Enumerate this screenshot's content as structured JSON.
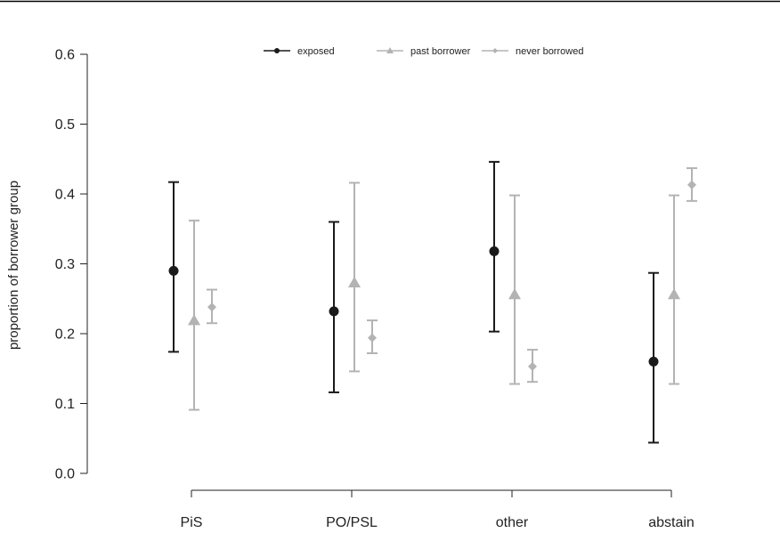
{
  "chart_data": {
    "type": "scatter",
    "ylabel": "proportion of borrower group",
    "xlabel": "",
    "categories": [
      "PiS",
      "PO/PSL",
      "other",
      "abstain"
    ],
    "ylim": [
      0.0,
      0.6
    ],
    "yticks": [
      "0.0",
      "0.1",
      "0.2",
      "0.3",
      "0.4",
      "0.5",
      "0.6"
    ],
    "grid": false,
    "legend_position": "top",
    "series": [
      {
        "name": "exposed",
        "marker": "circle",
        "color": "#1a1a1a",
        "values": [
          0.29,
          0.232,
          0.318,
          0.16
        ],
        "lower": [
          0.174,
          0.116,
          0.203,
          0.044
        ],
        "upper": [
          0.417,
          0.36,
          0.446,
          0.287
        ]
      },
      {
        "name": "past borrower",
        "marker": "triangle",
        "color": "#b3b3b3",
        "values": [
          0.219,
          0.273,
          0.256,
          0.256
        ],
        "lower": [
          0.091,
          0.146,
          0.128,
          0.128
        ],
        "upper": [
          0.362,
          0.416,
          0.398,
          0.398
        ]
      },
      {
        "name": "never borrowed",
        "marker": "diamond",
        "color": "#b3b3b3",
        "values": [
          0.238,
          0.194,
          0.153,
          0.413
        ],
        "lower": [
          0.215,
          0.172,
          0.131,
          0.39
        ],
        "upper": [
          0.263,
          0.219,
          0.177,
          0.437
        ]
      }
    ]
  }
}
